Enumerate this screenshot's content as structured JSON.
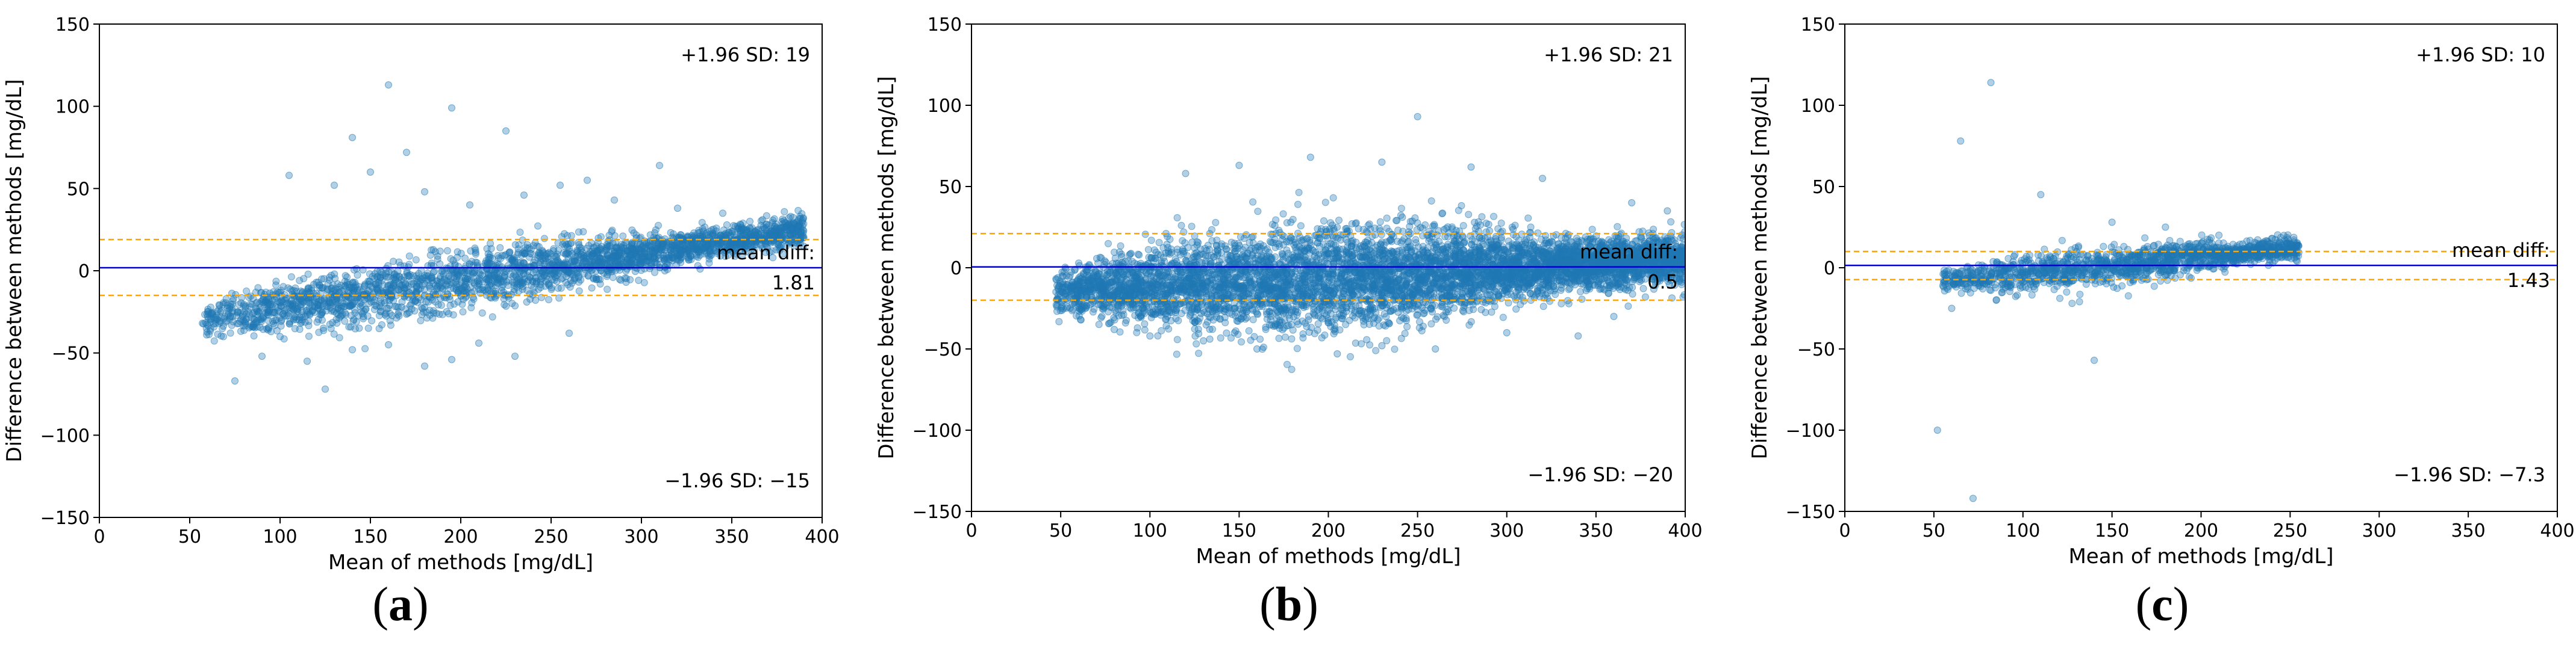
{
  "colors": {
    "points": "#1f77b4",
    "mean_line": "#0000cd",
    "limit_lines": "#ffa500",
    "axes": "#000000"
  },
  "chart_data": [
    {
      "type": "scatter",
      "panel_label": "a",
      "xlabel": "Mean of methods [mg/dL]",
      "ylabel": "Difference between methods [mg/dL]",
      "xlim": [
        0,
        400
      ],
      "ylim": [
        -150,
        150
      ],
      "xticks": [
        "0",
        "50",
        "100",
        "150",
        "200",
        "250",
        "300",
        "350",
        "400"
      ],
      "yticks": [
        "−150",
        "−100",
        "−50",
        "0",
        "50",
        "100",
        "150"
      ],
      "mean_diff": 1.81,
      "upper_loa": 19,
      "lower_loa": -15,
      "upper_label": "+1.96 SD: 19",
      "lower_label": "−1.96 SD: −15",
      "mean_label_line1": "mean diff:",
      "mean_label_line2": "1.81",
      "cloud": {
        "x_range": [
          57,
          390
        ],
        "center_start": -30,
        "center_end": 25,
        "spread_start": 4,
        "spread_end": 6,
        "sd_mid": 9,
        "count": 2600
      },
      "outliers": [
        [
          160,
          113
        ],
        [
          195,
          99
        ],
        [
          225,
          85
        ],
        [
          140,
          81
        ],
        [
          170,
          72
        ],
        [
          310,
          64
        ],
        [
          105,
          58
        ],
        [
          270,
          55
        ],
        [
          130,
          52
        ],
        [
          180,
          48
        ],
        [
          235,
          46
        ],
        [
          285,
          43
        ],
        [
          255,
          52
        ],
        [
          125,
          -72
        ],
        [
          75,
          -67
        ],
        [
          195,
          -54
        ],
        [
          180,
          -58
        ],
        [
          90,
          -52
        ],
        [
          140,
          -48
        ],
        [
          230,
          -52
        ],
        [
          160,
          -45
        ],
        [
          115,
          -55
        ],
        [
          210,
          -44
        ],
        [
          260,
          -38
        ],
        [
          100,
          -40
        ],
        [
          320,
          38
        ],
        [
          345,
          35
        ],
        [
          360,
          30
        ],
        [
          150,
          60
        ],
        [
          205,
          40
        ]
      ]
    },
    {
      "type": "scatter",
      "panel_label": "b",
      "xlabel": "Mean of methods [mg/dL]",
      "ylabel": "Difference between methods [mg/dL]",
      "xlim": [
        0,
        400
      ],
      "ylim": [
        -150,
        150
      ],
      "xticks": [
        "0",
        "50",
        "100",
        "150",
        "200",
        "250",
        "300",
        "350",
        "400"
      ],
      "yticks": [
        "−150",
        "−100",
        "−50",
        "0",
        "50",
        "100",
        "150"
      ],
      "mean_diff": 0.5,
      "upper_loa": 21,
      "lower_loa": -20,
      "upper_label": "+1.96 SD: 21",
      "lower_label": "−1.96 SD: −20",
      "mean_label_line1": "mean diff:",
      "mean_label_line2": "0.5",
      "cloud": {
        "x_range": [
          47,
          400
        ],
        "center_start": -15,
        "center_end": 5,
        "spread_start": 5,
        "spread_end": 14,
        "sd_mid": 15,
        "count": 6000
      },
      "outliers": [
        [
          250,
          93
        ],
        [
          190,
          68
        ],
        [
          150,
          63
        ],
        [
          280,
          62
        ],
        [
          230,
          65
        ],
        [
          120,
          58
        ],
        [
          320,
          55
        ],
        [
          205,
          -53
        ],
        [
          160,
          -50
        ],
        [
          230,
          -48
        ],
        [
          260,
          -50
        ],
        [
          130,
          -45
        ],
        [
          300,
          -40
        ],
        [
          340,
          -42
        ],
        [
          100,
          -42
        ],
        [
          370,
          40
        ],
        [
          390,
          35
        ],
        [
          360,
          -30
        ],
        [
          80,
          -38
        ]
      ]
    },
    {
      "type": "scatter",
      "panel_label": "c",
      "xlabel": "Mean of methods [mg/dL]",
      "ylabel": "Difference between methods [mg/dL]",
      "xlim": [
        0,
        400
      ],
      "ylim": [
        -150,
        150
      ],
      "xticks": [
        "0",
        "50",
        "100",
        "150",
        "200",
        "250",
        "300",
        "350",
        "400"
      ],
      "yticks": [
        "−150",
        "−100",
        "−50",
        "0",
        "50",
        "100",
        "150"
      ],
      "mean_diff": 1.43,
      "upper_loa": 10,
      "lower_loa": -7.3,
      "upper_label": "+1.96 SD: 10",
      "lower_label": "−1.96 SD: −7.3",
      "mean_label_line1": "mean diff:",
      "mean_label_line2": "1.43",
      "cloud": {
        "x_range": [
          55,
          255
        ],
        "center_start": -8,
        "center_end": 12,
        "spread_start": 3,
        "spread_end": 4,
        "sd_mid": 6,
        "count": 1500
      },
      "outliers": [
        [
          82,
          114
        ],
        [
          65,
          78
        ],
        [
          72,
          -142
        ],
        [
          52,
          -100
        ],
        [
          140,
          -57
        ],
        [
          110,
          45
        ],
        [
          60,
          -25
        ],
        [
          210,
          20
        ],
        [
          240,
          18
        ],
        [
          250,
          15
        ],
        [
          85,
          -20
        ],
        [
          180,
          25
        ],
        [
          150,
          28
        ]
      ]
    }
  ]
}
